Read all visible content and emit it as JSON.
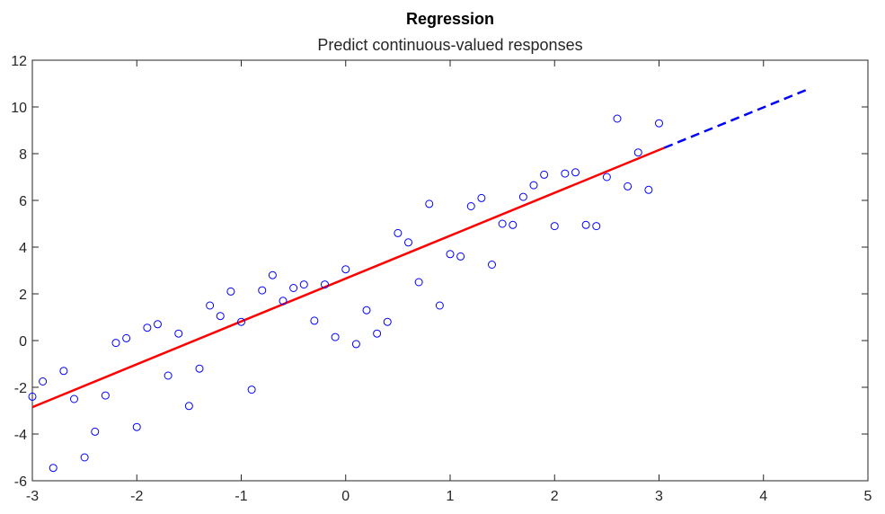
{
  "chart_data": {
    "type": "scatter",
    "title": "Regression",
    "subtitle": "Predict continuous-valued responses",
    "xlabel": "",
    "ylabel": "",
    "xlim": [
      -3,
      5
    ],
    "ylim": [
      -6,
      12
    ],
    "xticks": [
      "-3",
      "-2",
      "-1",
      "0",
      "1",
      "2",
      "3",
      "4",
      "5"
    ],
    "yticks": [
      "-6",
      "-4",
      "-2",
      "0",
      "2",
      "4",
      "6",
      "8",
      "10",
      "12"
    ],
    "grid": false,
    "colors": {
      "points": "#0000ff",
      "fit_line": "#ff0000",
      "prediction_line": "#0000ff",
      "axes": "#262626"
    },
    "points": [
      {
        "x": -3.0,
        "y": -2.4
      },
      {
        "x": -2.9,
        "y": -1.75
      },
      {
        "x": -2.8,
        "y": -5.45
      },
      {
        "x": -2.7,
        "y": -1.3
      },
      {
        "x": -2.6,
        "y": -2.5
      },
      {
        "x": -2.5,
        "y": -5.0
      },
      {
        "x": -2.4,
        "y": -3.9
      },
      {
        "x": -2.3,
        "y": -2.35
      },
      {
        "x": -2.2,
        "y": -0.1
      },
      {
        "x": -2.1,
        "y": 0.1
      },
      {
        "x": -2.0,
        "y": -3.7
      },
      {
        "x": -1.9,
        "y": 0.55
      },
      {
        "x": -1.8,
        "y": 0.7
      },
      {
        "x": -1.7,
        "y": -1.5
      },
      {
        "x": -1.6,
        "y": 0.3
      },
      {
        "x": -1.5,
        "y": -2.8
      },
      {
        "x": -1.4,
        "y": -1.2
      },
      {
        "x": -1.3,
        "y": 1.5
      },
      {
        "x": -1.2,
        "y": 1.05
      },
      {
        "x": -1.1,
        "y": 2.1
      },
      {
        "x": -1.0,
        "y": 0.8
      },
      {
        "x": -0.9,
        "y": -2.1
      },
      {
        "x": -0.8,
        "y": 2.15
      },
      {
        "x": -0.7,
        "y": 2.8
      },
      {
        "x": -0.6,
        "y": 1.7
      },
      {
        "x": -0.5,
        "y": 2.25
      },
      {
        "x": -0.4,
        "y": 2.4
      },
      {
        "x": -0.3,
        "y": 0.85
      },
      {
        "x": -0.2,
        "y": 2.4
      },
      {
        "x": -0.1,
        "y": 0.15
      },
      {
        "x": 0.0,
        "y": 3.05
      },
      {
        "x": 0.1,
        "y": -0.15
      },
      {
        "x": 0.2,
        "y": 1.3
      },
      {
        "x": 0.3,
        "y": 0.3
      },
      {
        "x": 0.4,
        "y": 0.8
      },
      {
        "x": 0.5,
        "y": 4.6
      },
      {
        "x": 0.6,
        "y": 4.2
      },
      {
        "x": 0.7,
        "y": 2.5
      },
      {
        "x": 0.8,
        "y": 5.85
      },
      {
        "x": 0.9,
        "y": 1.5
      },
      {
        "x": 1.0,
        "y": 3.7
      },
      {
        "x": 1.1,
        "y": 3.6
      },
      {
        "x": 1.2,
        "y": 5.75
      },
      {
        "x": 1.3,
        "y": 6.1
      },
      {
        "x": 1.4,
        "y": 3.25
      },
      {
        "x": 1.5,
        "y": 5.0
      },
      {
        "x": 1.6,
        "y": 4.95
      },
      {
        "x": 1.7,
        "y": 6.15
      },
      {
        "x": 1.8,
        "y": 6.65
      },
      {
        "x": 1.9,
        "y": 7.1
      },
      {
        "x": 2.0,
        "y": 4.9
      },
      {
        "x": 2.1,
        "y": 7.15
      },
      {
        "x": 2.2,
        "y": 7.2
      },
      {
        "x": 2.3,
        "y": 4.95
      },
      {
        "x": 2.4,
        "y": 4.9
      },
      {
        "x": 2.5,
        "y": 7.0
      },
      {
        "x": 2.6,
        "y": 9.5
      },
      {
        "x": 2.7,
        "y": 6.6
      },
      {
        "x": 2.8,
        "y": 8.05
      },
      {
        "x": 2.9,
        "y": 6.45
      },
      {
        "x": 3.0,
        "y": 9.3
      }
    ],
    "fit_line": {
      "x": [
        -3,
        3.05
      ],
      "y": [
        -2.85,
        8.25
      ]
    },
    "prediction_line": {
      "x": [
        3.05,
        4.45
      ],
      "y": [
        8.25,
        10.8
      ]
    }
  }
}
